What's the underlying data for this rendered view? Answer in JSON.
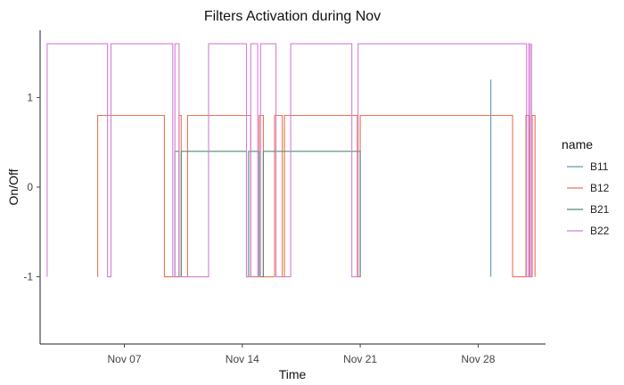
{
  "chart_data": {
    "type": "line",
    "title": "Filters Activation during Nov",
    "xlabel": "Time",
    "ylabel": "On/Off",
    "x_ticks": [
      "Nov 07",
      "Nov 14",
      "Nov 21",
      "Nov 28"
    ],
    "y_ticks": [
      "-1",
      "0",
      "1"
    ],
    "ylim": [
      -1.75,
      1.75
    ],
    "xlim": [
      "2021-11-02",
      "2021-12-02"
    ],
    "grid": false,
    "legend_title": "name",
    "legend_position": "right",
    "series": [
      {
        "name": "B11",
        "color": "#5b9ea6",
        "points": [
          [
            "2021-11-28 18:00",
            -1
          ],
          [
            "2021-11-28 18:00",
            1.2
          ],
          [
            "2021-11-28 18:00",
            -1
          ]
        ]
      },
      {
        "name": "B12",
        "color": "#e9744f",
        "points": [
          [
            "2021-11-05 10:00",
            -1
          ],
          [
            "2021-11-05 10:00",
            0.8
          ],
          [
            "2021-11-09 09:00",
            0.8
          ],
          [
            "2021-11-09 09:00",
            -1
          ],
          [
            "2021-11-10 06:00",
            -1
          ],
          [
            "2021-11-10 06:00",
            0.8
          ],
          [
            "2021-11-10 09:00",
            0.8
          ],
          [
            "2021-11-10 09:00",
            -1
          ],
          [
            "2021-11-10 18:00",
            -1
          ],
          [
            "2021-11-10 18:00",
            0.8
          ],
          [
            "2021-11-14 12:00",
            0.8
          ],
          [
            "2021-11-14 12:00",
            -1
          ],
          [
            "2021-11-15 00:00",
            -1
          ],
          [
            "2021-11-15 00:00",
            0.8
          ],
          [
            "2021-11-15 06:00",
            0.8
          ],
          [
            "2021-11-15 06:00",
            -1
          ],
          [
            "2021-11-15 22:00",
            -1
          ],
          [
            "2021-11-15 22:00",
            0.8
          ],
          [
            "2021-11-16 09:00",
            0.8
          ],
          [
            "2021-11-16 09:00",
            -1
          ],
          [
            "2021-11-16 12:00",
            -1
          ],
          [
            "2021-11-16 12:00",
            0.8
          ],
          [
            "2021-11-20 20:00",
            0.8
          ],
          [
            "2021-11-20 20:00",
            -1
          ],
          [
            "2021-11-21 00:00",
            -1
          ],
          [
            "2021-11-21 00:00",
            0.8
          ],
          [
            "2021-11-30 01:00",
            0.8
          ],
          [
            "2021-11-30 01:00",
            -1
          ],
          [
            "2021-11-30 20:00",
            -1
          ],
          [
            "2021-11-30 20:00",
            0.8
          ],
          [
            "2021-12-01 01:00",
            0.8
          ],
          [
            "2021-12-01 01:00",
            -1
          ],
          [
            "2021-12-01 05:00",
            -1
          ],
          [
            "2021-12-01 05:00",
            0.8
          ],
          [
            "2021-12-01 09:00",
            0.8
          ],
          [
            "2021-12-01 09:00",
            -1
          ]
        ]
      },
      {
        "name": "B21",
        "color": "#4e8f73",
        "points": [
          [
            "2021-11-10 00:00",
            -1
          ],
          [
            "2021-11-10 00:00",
            0.4
          ],
          [
            "2021-11-10 06:00",
            0.4
          ],
          [
            "2021-11-10 06:00",
            -1
          ],
          [
            "2021-11-10 09:00",
            -1
          ],
          [
            "2021-11-10 09:00",
            0.4
          ],
          [
            "2021-11-14 06:00",
            0.4
          ],
          [
            "2021-11-14 06:00",
            -1
          ],
          [
            "2021-11-14 09:00",
            -1
          ],
          [
            "2021-11-14 09:00",
            0.4
          ],
          [
            "2021-11-15 00:00",
            0.4
          ],
          [
            "2021-11-15 00:00",
            -1
          ],
          [
            "2021-11-15 06:00",
            -1
          ],
          [
            "2021-11-15 06:00",
            0.4
          ],
          [
            "2021-11-21 00:00",
            0.4
          ],
          [
            "2021-11-21 00:00",
            -1
          ]
        ]
      },
      {
        "name": "B22",
        "color": "#d47fd3",
        "points": [
          [
            "2021-11-02 10:00",
            -1
          ],
          [
            "2021-11-02 10:00",
            1.6
          ],
          [
            "2021-11-06 00:00",
            1.6
          ],
          [
            "2021-11-06 00:00",
            -1
          ],
          [
            "2021-11-06 05:00",
            -1
          ],
          [
            "2021-11-06 05:00",
            1.6
          ],
          [
            "2021-11-09 21:00",
            1.6
          ],
          [
            "2021-11-09 21:00",
            -1
          ],
          [
            "2021-11-10 00:00",
            -1
          ],
          [
            "2021-11-10 00:00",
            1.6
          ],
          [
            "2021-11-10 06:00",
            1.6
          ],
          [
            "2021-11-10 06:00",
            -1
          ],
          [
            "2021-11-12 00:00",
            -1
          ],
          [
            "2021-11-12 00:00",
            1.6
          ],
          [
            "2021-11-14 06:00",
            1.6
          ],
          [
            "2021-11-14 06:00",
            -1
          ],
          [
            "2021-11-14 12:00",
            -1
          ],
          [
            "2021-11-14 12:00",
            1.6
          ],
          [
            "2021-11-14 22:00",
            1.6
          ],
          [
            "2021-11-14 22:00",
            -1
          ],
          [
            "2021-11-15 02:00",
            -1
          ],
          [
            "2021-11-15 02:00",
            1.6
          ],
          [
            "2021-11-16 00:00",
            1.6
          ],
          [
            "2021-11-16 00:00",
            -1
          ],
          [
            "2021-11-16 21:00",
            -1
          ],
          [
            "2021-11-16 21:00",
            1.6
          ],
          [
            "2021-11-20 12:00",
            1.6
          ],
          [
            "2021-11-20 12:00",
            -1
          ],
          [
            "2021-11-20 21:00",
            -1
          ],
          [
            "2021-11-20 21:00",
            1.6
          ],
          [
            "2021-11-30 21:00",
            1.6
          ],
          [
            "2021-11-30 21:00",
            -1
          ],
          [
            "2021-12-01 00:00",
            -1
          ],
          [
            "2021-12-01 00:00",
            1.6
          ],
          [
            "2021-12-01 02:00",
            1.6
          ],
          [
            "2021-12-01 02:00",
            -1
          ],
          [
            "2021-12-01 04:00",
            -1
          ],
          [
            "2021-12-01 04:00",
            1.6
          ]
        ]
      }
    ]
  }
}
